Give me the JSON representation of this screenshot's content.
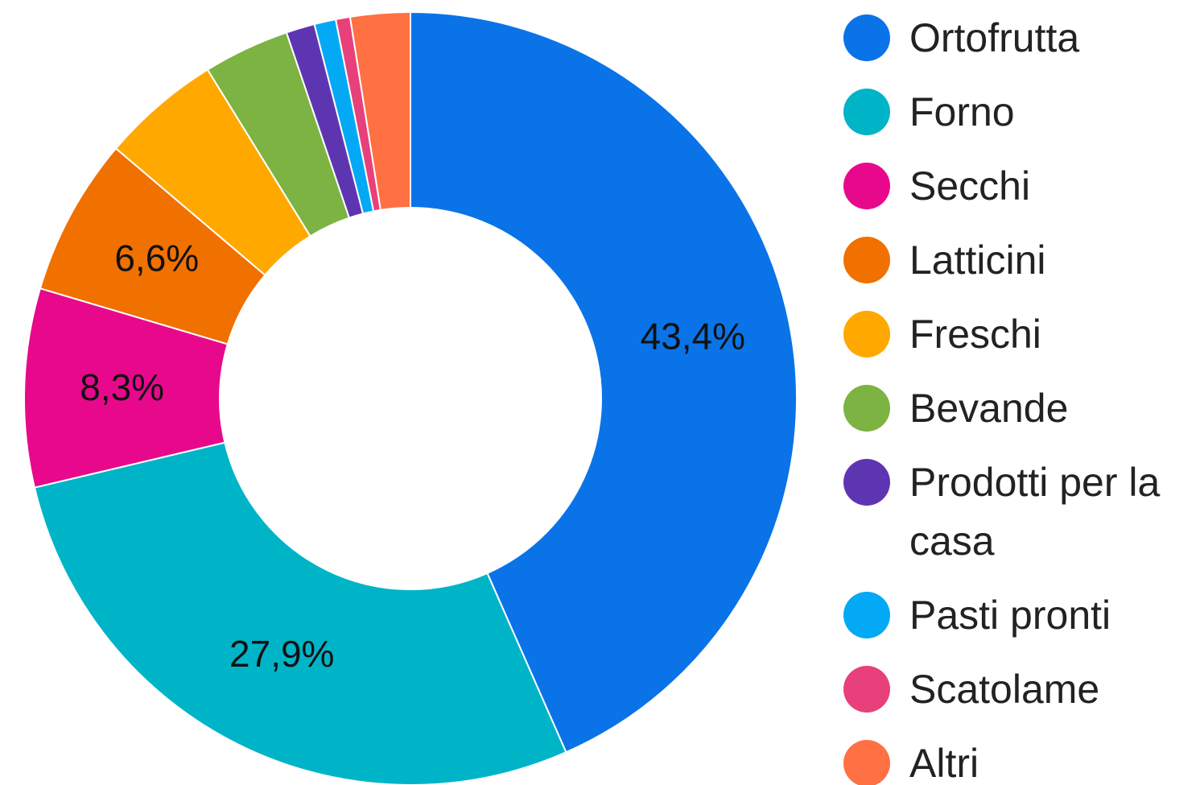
{
  "chart_data": {
    "type": "donut",
    "categories": [
      "Ortofrutta",
      "Forno",
      "Secchi",
      "Latticini",
      "Freschi",
      "Bevande",
      "Prodotti per la casa",
      "Pasti pronti",
      "Scatolame",
      "Altri"
    ],
    "values": [
      43.4,
      27.9,
      8.3,
      6.6,
      5.0,
      3.6,
      1.2,
      0.9,
      0.6,
      2.5
    ],
    "value_labels": [
      "43,4%",
      "27,9%",
      "8,3%",
      "6,6%",
      null,
      null,
      null,
      null,
      null,
      null
    ],
    "colors": [
      "#0a73e8",
      "#00b4c8",
      "#e8088c",
      "#f07000",
      "#ffa800",
      "#7cb342",
      "#5e35b1",
      "#03a9f4",
      "#e8407a",
      "#ff7043"
    ],
    "legend": "right"
  }
}
